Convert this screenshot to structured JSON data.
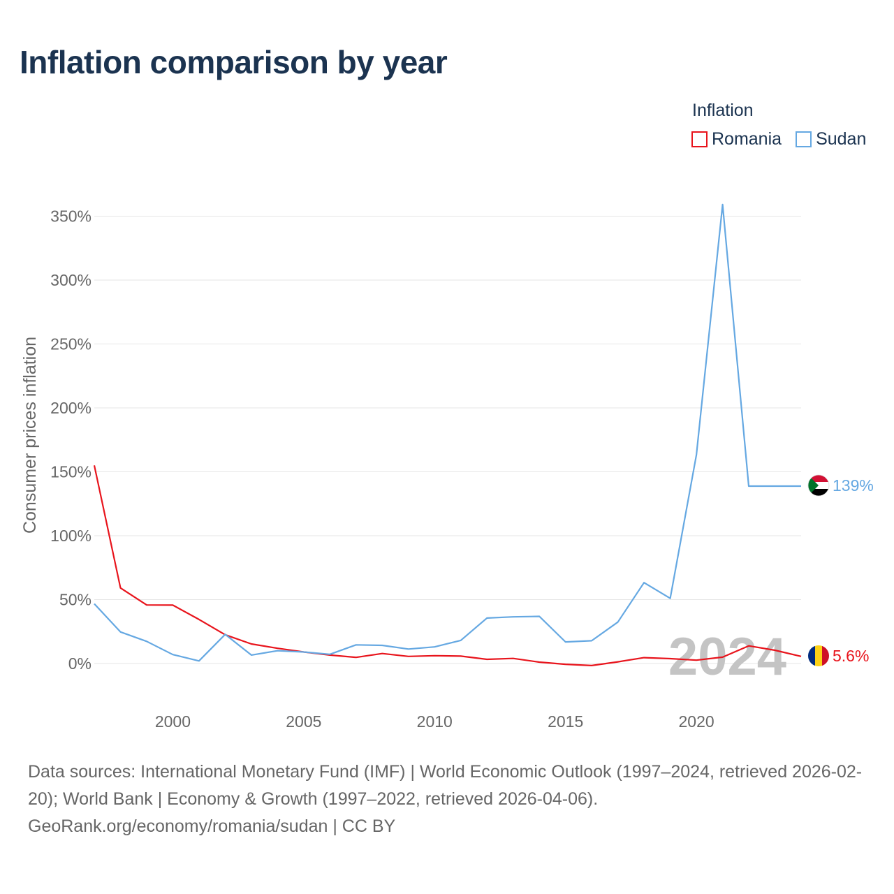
{
  "title": "Inflation comparison by year",
  "legend": {
    "title": "Inflation",
    "items": [
      {
        "name": "Romania",
        "color": "#e8141c"
      },
      {
        "name": "Sudan",
        "color": "#65a8e2"
      }
    ]
  },
  "year_watermark": "2024",
  "end_labels": {
    "sudan": "139%",
    "romania": "5.6%"
  },
  "footer": {
    "sources": "Data sources: International Monetary Fund (IMF) | World Economic Outlook (1997–2024, retrieved 2026-02-20); World Bank | Economy & Growth (1997–2022, retrieved 2026-04-06).",
    "credit": "GeoRank.org/economy/romania/sudan | CC BY"
  },
  "chart_data": {
    "type": "line",
    "title": "Inflation comparison by year",
    "xlabel": "",
    "ylabel": "Consumer prices inflation",
    "xlim": [
      1997,
      2024
    ],
    "ylim": [
      -15,
      370
    ],
    "x_ticks": [
      2000,
      2005,
      2010,
      2015,
      2020
    ],
    "y_ticks": [
      0,
      50,
      100,
      150,
      200,
      250,
      300,
      350
    ],
    "y_tick_labels": [
      "0%",
      "50%",
      "100%",
      "150%",
      "200%",
      "250%",
      "300%",
      "350%"
    ],
    "grid": true,
    "legend_position": "top-right",
    "x": [
      1997,
      1998,
      1999,
      2000,
      2001,
      2002,
      2003,
      2004,
      2005,
      2006,
      2007,
      2008,
      2009,
      2010,
      2011,
      2012,
      2013,
      2014,
      2015,
      2016,
      2017,
      2018,
      2019,
      2020,
      2021,
      2022,
      2023,
      2024
    ],
    "series": [
      {
        "name": "Romania",
        "color": "#e8141c",
        "values": [
          155,
          59.1,
          45.8,
          45.7,
          34.5,
          22.5,
          15.3,
          11.9,
          9.0,
          6.6,
          4.8,
          7.8,
          5.6,
          6.1,
          5.8,
          3.3,
          4.0,
          1.1,
          -0.6,
          -1.6,
          1.3,
          4.6,
          3.8,
          2.6,
          5.0,
          13.8,
          10.4,
          5.6
        ]
      },
      {
        "name": "Sudan",
        "color": "#65a8e2",
        "values": [
          46.7,
          24.7,
          17.3,
          7.0,
          2.0,
          22.8,
          6.6,
          10.0,
          9.0,
          7.2,
          14.6,
          14.2,
          11.3,
          13.0,
          18.1,
          35.6,
          36.5,
          36.9,
          16.9,
          17.8,
          32.4,
          63.3,
          51.0,
          163.3,
          359.1,
          138.8,
          138.8,
          138.8
        ]
      }
    ]
  }
}
